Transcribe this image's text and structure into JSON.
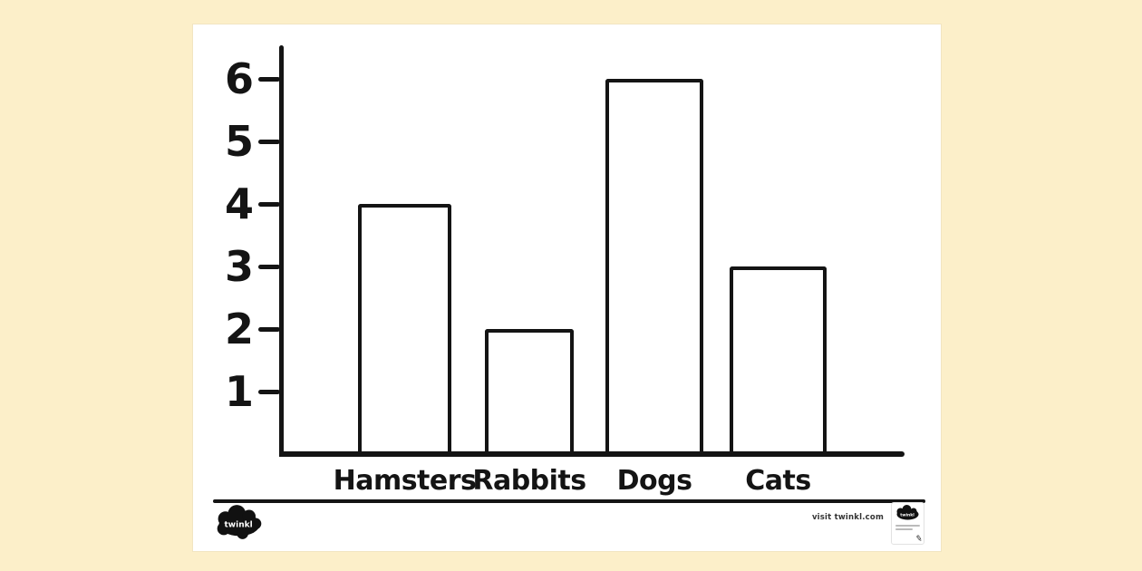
{
  "page": {
    "background_color": "#FCEFC9",
    "paper_color": "#FFFFFF",
    "ink_color": "#141414"
  },
  "chart_data": {
    "type": "bar",
    "title": "",
    "categories": [
      "Hamsters",
      "Rabbits",
      "Dogs",
      "Cats"
    ],
    "values": [
      4,
      2,
      6,
      3
    ],
    "xlabel": "",
    "ylabel": "",
    "yticks": [
      1,
      2,
      3,
      4,
      5,
      6
    ],
    "ylim": [
      0,
      6.5
    ],
    "grid": false,
    "legend": false,
    "bar_fill": "#FFFFFF",
    "bar_stroke": "#141414"
  },
  "footer": {
    "logo_text": "twinkl",
    "visit_text": "visit twinkl.com",
    "badge_logo_text": "twinkl"
  }
}
